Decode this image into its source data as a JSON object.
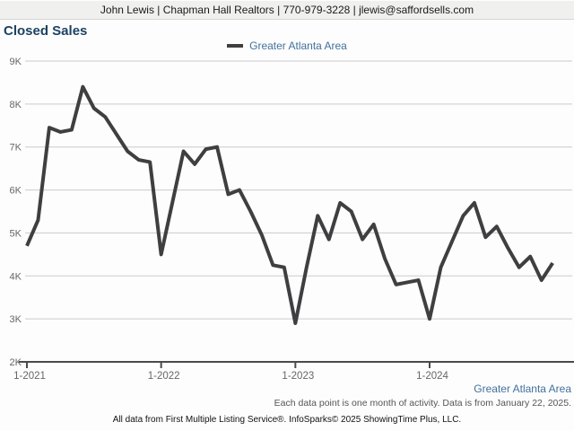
{
  "header": {
    "agent_info": "John Lewis | Chapman Hall Realtors | 770-979-3228 | jlewis@saffordsells.com"
  },
  "title": "Closed Sales",
  "legend": {
    "label": "Greater Atlanta Area",
    "swatch_color": "#3f3f41"
  },
  "footer": {
    "region_label": "Greater Atlanta Area",
    "data_note": "Each data point is one month of activity. Data is from January 22, 2025.",
    "attribution": "All data from First Multiple Listing Service®. InfoSparks© 2025 ShowingTime Plus, LLC."
  },
  "colors": {
    "line": "#3f3f41",
    "grid": "#cbcbcb",
    "axis": "#4b4b4b",
    "tick_label": "#666666",
    "title": "#1c4263",
    "legend_blue": "#41719c"
  },
  "chart_data": {
    "type": "line",
    "title": "Closed Sales",
    "x_start": "2021-01",
    "x_unit": "month",
    "x_points": 48,
    "x_tick_labels": [
      "1-2021",
      "1-2022",
      "1-2023",
      "1-2024"
    ],
    "y_tick_labels": [
      "2K",
      "3K",
      "4K",
      "5K",
      "6K",
      "7K",
      "8K",
      "9K"
    ],
    "ylim": [
      2000,
      9000
    ],
    "grid": true,
    "legend_position": "top-center",
    "series": [
      {
        "name": "Greater Atlanta Area",
        "color": "#3f3f41",
        "values": [
          4700,
          5300,
          7450,
          7350,
          7400,
          8400,
          7900,
          7700,
          7300,
          6900,
          6700,
          6650,
          4500,
          5700,
          6900,
          6600,
          6950,
          7000,
          5900,
          6000,
          5500,
          4950,
          4250,
          4200,
          2900,
          4200,
          5400,
          4850,
          5700,
          5500,
          4850,
          5200,
          4400,
          3800,
          3850,
          3900,
          3000,
          4200,
          4800,
          5400,
          5700,
          4900,
          5150,
          4650,
          4200,
          4450,
          3900,
          4300
        ]
      }
    ]
  }
}
